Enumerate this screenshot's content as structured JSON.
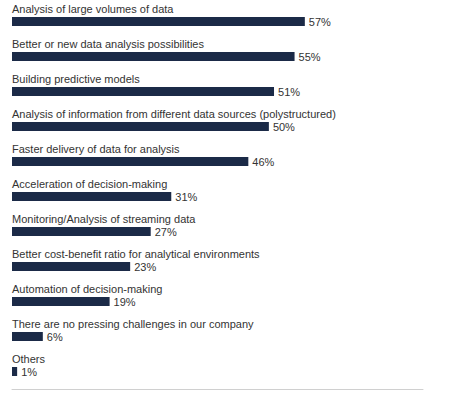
{
  "chart_data": {
    "type": "bar",
    "orientation": "horizontal",
    "categories": [
      "Analysis of large volumes of data",
      "Better or new data analysis possibilities",
      "Building predictive models",
      "Analysis of information from different data sources (polystructured)",
      "Faster delivery of data for analysis",
      "Acceleration of decision-making",
      "Monitoring/Analysis of streaming data",
      "Better cost-benefit ratio for analytical environments",
      "Automation of decision-making",
      "There are no pressing challenges in our company",
      "Others"
    ],
    "values": [
      57,
      55,
      51,
      50,
      46,
      31,
      27,
      23,
      19,
      6,
      1
    ],
    "value_labels": [
      "57%",
      "55%",
      "51%",
      "50%",
      "46%",
      "31%",
      "27%",
      "23%",
      "19%",
      "6%",
      "1%"
    ],
    "color": "#1b2a47",
    "xlim": [
      0,
      80
    ],
    "grid": false,
    "data_labels": true,
    "tick_labels": false
  }
}
